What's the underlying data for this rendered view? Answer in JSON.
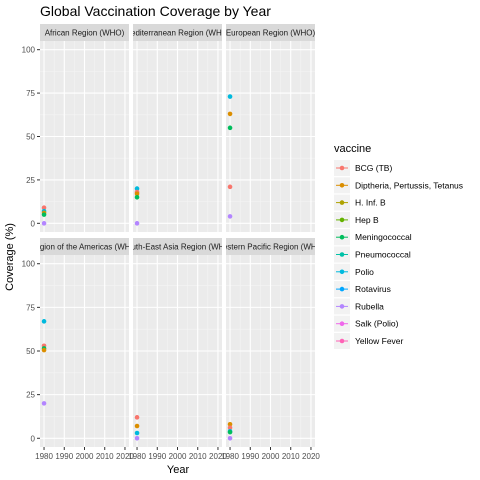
{
  "chart_data": {
    "type": "scatter",
    "title": "Global Vaccination Coverage by Year",
    "xlabel": "Year",
    "ylabel": "Coverage (%)",
    "xlim": [
      1978,
      2022
    ],
    "ylim": [
      -5,
      105
    ],
    "x_ticks": [
      1980,
      1990,
      2000,
      2010,
      2020
    ],
    "y_ticks": [
      0,
      25,
      50,
      75,
      100
    ],
    "grid": true,
    "legend_title": "vaccine",
    "legend_position": "right",
    "series": [
      {
        "name": "BCG (TB)",
        "color": "#F8766D"
      },
      {
        "name": "Diptheria, Pertussis, Tetanus",
        "color": "#DB8E00"
      },
      {
        "name": "H. Inf. B",
        "color": "#AEA200"
      },
      {
        "name": "Hep B",
        "color": "#64B200"
      },
      {
        "name": "Meningococcal",
        "color": "#00BD5C"
      },
      {
        "name": "Pneumococcal",
        "color": "#00C1A7"
      },
      {
        "name": "Polio",
        "color": "#00BADE"
      },
      {
        "name": "Rotavirus",
        "color": "#00A6FF"
      },
      {
        "name": "Rubella",
        "color": "#B385FF"
      },
      {
        "name": "Salk (Polio)",
        "color": "#EF67EB"
      },
      {
        "name": "Yellow Fever",
        "color": "#FF63B6"
      }
    ],
    "panels": [
      {
        "label": "African Region (WHO)",
        "points": [
          {
            "series": "BCG (TB)",
            "x": 1980,
            "y": 9
          },
          {
            "series": "Polio",
            "x": 1980,
            "y": 7
          },
          {
            "series": "Diptheria, Pertussis, Tetanus",
            "x": 1980,
            "y": 6
          },
          {
            "series": "Meningococcal",
            "x": 1980,
            "y": 5
          },
          {
            "series": "Rubella",
            "x": 1980,
            "y": 0
          }
        ]
      },
      {
        "label": "Mediterranean Region (WHO)",
        "points": [
          {
            "series": "Polio",
            "x": 1980,
            "y": 20
          },
          {
            "series": "BCG (TB)",
            "x": 1980,
            "y": 18
          },
          {
            "series": "Diptheria, Pertussis, Tetanus",
            "x": 1980,
            "y": 17
          },
          {
            "series": "Meningococcal",
            "x": 1980,
            "y": 15
          },
          {
            "series": "Rubella",
            "x": 1980,
            "y": 0
          }
        ]
      },
      {
        "label": "European Region (WHO)",
        "points": [
          {
            "series": "Polio",
            "x": 1980,
            "y": 73
          },
          {
            "series": "Diptheria, Pertussis, Tetanus",
            "x": 1980,
            "y": 63
          },
          {
            "series": "Meningococcal",
            "x": 1980,
            "y": 55
          },
          {
            "series": "BCG (TB)",
            "x": 1980,
            "y": 21
          },
          {
            "series": "Rubella",
            "x": 1980,
            "y": 4
          }
        ]
      },
      {
        "label": "Region of the Americas (WHO)",
        "points": [
          {
            "series": "Polio",
            "x": 1980,
            "y": 67
          },
          {
            "series": "BCG (TB)",
            "x": 1980,
            "y": 53
          },
          {
            "series": "Meningococcal",
            "x": 1980,
            "y": 51.5
          },
          {
            "series": "Diptheria, Pertussis, Tetanus",
            "x": 1980,
            "y": 50.5
          },
          {
            "series": "Rubella",
            "x": 1980,
            "y": 20
          }
        ]
      },
      {
        "label": "South-East Asia Region (WHO)",
        "points": [
          {
            "series": "BCG (TB)",
            "x": 1980,
            "y": 12
          },
          {
            "series": "Diptheria, Pertussis, Tetanus",
            "x": 1980,
            "y": 7
          },
          {
            "series": "Polio",
            "x": 1980,
            "y": 3
          },
          {
            "series": "Rubella",
            "x": 1980,
            "y": 0
          }
        ]
      },
      {
        "label": "Western Pacific Region (WHO)",
        "points": [
          {
            "series": "Diptheria, Pertussis, Tetanus",
            "x": 1980,
            "y": 8
          },
          {
            "series": "BCG (TB)",
            "x": 1980,
            "y": 6
          },
          {
            "series": "Polio",
            "x": 1980,
            "y": 4
          },
          {
            "series": "Meningococcal",
            "x": 1980,
            "y": 3.5
          },
          {
            "series": "Rubella",
            "x": 1980,
            "y": 0
          }
        ]
      }
    ]
  }
}
